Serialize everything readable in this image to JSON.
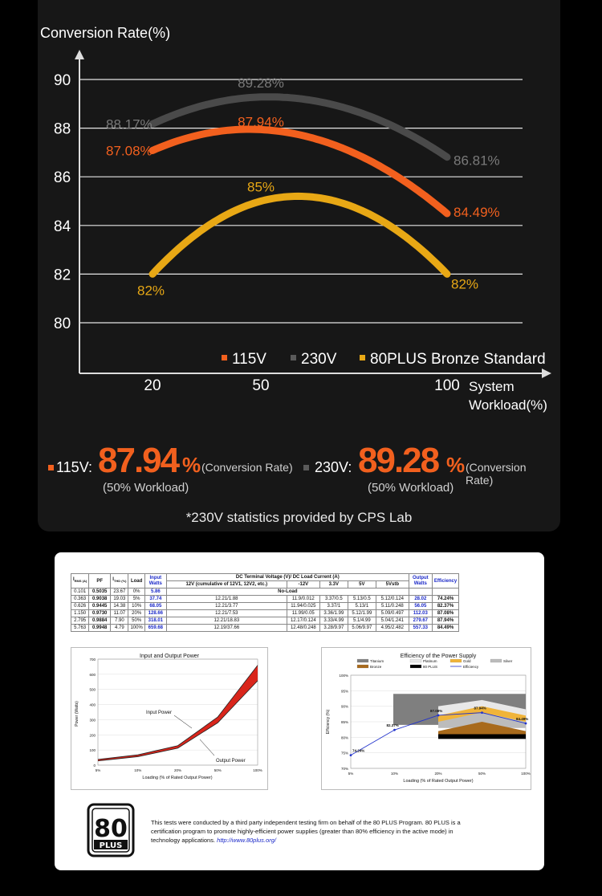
{
  "chart_data": {
    "type": "line",
    "title": "",
    "ylabel": "Conversion Rate(%)",
    "xlabel": "System Workload(%)",
    "xlabel_lines": [
      "System",
      "Workload(%)"
    ],
    "x": [
      20,
      50,
      100
    ],
    "xticks": [
      "20",
      "50",
      "100"
    ],
    "yticks": [
      "80",
      "82",
      "84",
      "86",
      "88",
      "90"
    ],
    "ylim": [
      80,
      90
    ],
    "legend_position": "bottom-right",
    "series": [
      {
        "name": "115V",
        "values": [
          87.08,
          87.94,
          84.49
        ],
        "labels": [
          "87.08%",
          "87.94%",
          "84.49%"
        ],
        "color": "#f2601e"
      },
      {
        "name": "230V",
        "values": [
          88.17,
          89.28,
          86.81
        ],
        "labels": [
          "88.17%",
          "89.28%",
          "86.81%"
        ],
        "color": "#4a4a4a"
      },
      {
        "name": "80PLUS Bronze Standard",
        "values": [
          82,
          85,
          82
        ],
        "labels": [
          "82%",
          "85%",
          "82%"
        ],
        "color": "#e8a815"
      }
    ]
  },
  "summary": {
    "v115": {
      "label": "115V:",
      "value": "87.94",
      "unit": "%",
      "note": "(Conversion Rate)",
      "sub": "(50% Workload)"
    },
    "v230": {
      "label": "230V:",
      "value": "89.28",
      "unit": "%",
      "note": "(Conversion Rate)",
      "sub": "(50% Workload)"
    },
    "footnote": "*230V statistics provided by CPS Lab"
  },
  "report": {
    "headers": {
      "irms": "I",
      "irms_sub": "RMS (A)",
      "pf": "PF",
      "ithd": "I",
      "ithd_sub": "THD (%)",
      "load": "Load",
      "input": "Input Watts",
      "dc_title": "DC Terminal Voltage (V)/ DC Load Current (A)",
      "dc_12v": "12V (cumulative of 12V1, 12V2, etc.)",
      "dc_m12": "-12V",
      "dc_33": "3.3V",
      "dc_5": "5V",
      "dc_5sb": "5Vstb",
      "output": "Output Watts",
      "eff": "Efficiency"
    },
    "rows": [
      {
        "irms": "0.101",
        "pf": "0.5035",
        "ithd": "23.67",
        "load": "0%",
        "input": "5.86",
        "v12": "",
        "m12": "",
        "v33": "",
        "v5": "",
        "v5sb": "",
        "output": "",
        "eff": "",
        "noload": "No-Load"
      },
      {
        "irms": "0.363",
        "pf": "0.9038",
        "ithd": "19.03",
        "load": "5%",
        "input": "37.74",
        "v12": "12.21/1.88",
        "m12": "11.9/0.012",
        "v33": "3.37/0.5",
        "v5": "5.13/0.5",
        "v5sb": "5.12/0.124",
        "output": "28.02",
        "eff": "74.24%"
      },
      {
        "irms": "0.626",
        "pf": "0.9445",
        "ithd": "14.38",
        "load": "10%",
        "input": "68.05",
        "v12": "12.21/3.77",
        "m12": "11.94/0.025",
        "v33": "3.37/1",
        "v5": "5.13/1",
        "v5sb": "5.11/0.248",
        "output": "56.05",
        "eff": "82.37%"
      },
      {
        "irms": "1.150",
        "pf": "0.9730",
        "ithd": "11.07",
        "load": "20%",
        "input": "128.66",
        "v12": "12.21/7.53",
        "m12": "11.99/0.05",
        "v33": "3.36/1.99",
        "v5": "5.12/1.99",
        "v5sb": "5.09/0.497",
        "output": "112.03",
        "eff": "87.08%"
      },
      {
        "irms": "2.795",
        "pf": "0.9884",
        "ithd": "7.90",
        "load": "50%",
        "input": "318.01",
        "v12": "12.21/18.83",
        "m12": "12.17/0.124",
        "v33": "3.33/4.99",
        "v5": "5.1/4.99",
        "v5sb": "5.04/1.241",
        "output": "279.67",
        "eff": "87.94%"
      },
      {
        "irms": "5.763",
        "pf": "0.9948",
        "ithd": "4.79",
        "load": "100%",
        "input": "659.68",
        "v12": "12.19/37.66",
        "m12": "12.48/0.248",
        "v33": "3.28/9.97",
        "v5": "5.06/9.97",
        "v5sb": "4.95/2.482",
        "output": "557.33",
        "eff": "84.49%"
      }
    ]
  },
  "power_chart": {
    "title": "Input and Output Power",
    "xlabel": "Loading (% of Rated Output Power)",
    "ylabel": "Power (Watts)",
    "x": [
      "5%",
      "10%",
      "20%",
      "50%",
      "100%"
    ],
    "yticks": [
      "0",
      "100",
      "200",
      "300",
      "400",
      "500",
      "600",
      "700"
    ],
    "ylim": [
      0,
      700
    ],
    "series": [
      {
        "name": "Input Power",
        "values": [
          37.74,
          68.05,
          128.66,
          318.01,
          659.68
        ]
      },
      {
        "name": "Output Power",
        "values": [
          28.02,
          56.05,
          112.03,
          279.67,
          557.33
        ]
      }
    ]
  },
  "eff_chart": {
    "title": "Efficiency of the Power Supply",
    "xlabel": "Loading (% of Rated Output Power)",
    "ylabel": "Efficiency (%)",
    "x": [
      "5%",
      "10%",
      "20%",
      "50%",
      "100%"
    ],
    "yticks": [
      "70%",
      "75%",
      "80%",
      "85%",
      "90%",
      "95%",
      "100%"
    ],
    "ylim": [
      70,
      100
    ],
    "values": [
      74.24,
      82.37,
      87.08,
      87.94,
      84.49
    ],
    "point_labels": [
      "74.24%",
      "82.37%",
      "87.08%",
      "87.94%",
      "84.49%"
    ],
    "legend": [
      "Titanium",
      "Platinum",
      "Gold",
      "Silver",
      "Bronze",
      "80 PLUS",
      "Efficiency"
    ]
  },
  "plus_logo": {
    "num": "80",
    "word": "PLUS"
  },
  "notice": {
    "text": "This tests were conducted by a third party independent testing firm on behalf of the 80 PLUS Program. 80 PLUS is a certification program to promote highly-efficient power supplies (greater than 80% efficiency in the active mode) in technology applications.",
    "link": "http://www.80plus.org/"
  }
}
